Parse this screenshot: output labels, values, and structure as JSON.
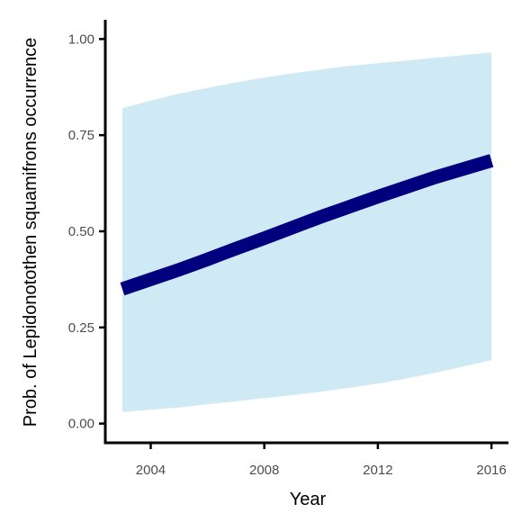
{
  "chart_data": {
    "type": "line",
    "xlabel": "Year",
    "ylabel": "Prob. of  Lepidonotothen squamifrons  occurrence",
    "xlim": [
      2002.4,
      2016.6
    ],
    "ylim": [
      -0.05,
      1.05
    ],
    "x_ticks": [
      2004,
      2008,
      2012,
      2016
    ],
    "x_tick_labels": [
      "2004",
      "2008",
      "2012",
      "2016"
    ],
    "y_ticks": [
      0,
      0.25,
      0.5,
      0.75,
      1
    ],
    "y_tick_labels": [
      "0.00",
      "0.25",
      "0.50",
      "0.75",
      "1.00"
    ],
    "grid": false,
    "series": [
      {
        "x": [
          2003,
          2004,
          2005,
          2006,
          2007,
          2008,
          2009,
          2010,
          2011,
          2012,
          2013,
          2014,
          2015,
          2016
        ],
        "values": [
          0.35,
          0.375,
          0.4,
          0.427,
          0.455,
          0.482,
          0.51,
          0.538,
          0.564,
          0.59,
          0.615,
          0.64,
          0.662,
          0.684
        ],
        "lower": [
          0.03,
          0.036,
          0.042,
          0.05,
          0.058,
          0.066,
          0.074,
          0.083,
          0.093,
          0.104,
          0.117,
          0.132,
          0.148,
          0.165
        ],
        "upper": [
          0.82,
          0.84,
          0.858,
          0.873,
          0.887,
          0.9,
          0.911,
          0.921,
          0.93,
          0.937,
          0.944,
          0.951,
          0.958,
          0.965
        ]
      }
    ],
    "colors": {
      "line": "#00007f",
      "ribbon": "#d0eaf5",
      "axis": "#000000",
      "tick_text": "#4d4d4d"
    }
  }
}
